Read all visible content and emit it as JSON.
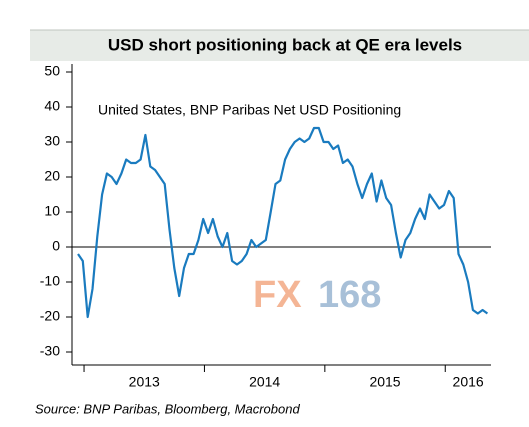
{
  "chart_data": {
    "type": "line",
    "title": "USD short positioning back at QE era levels",
    "annotation": "United States, BNP Paribas Net USD Positioning",
    "source": "Source:  BNP Paribas, Bloomberg, Macrobond",
    "watermark": [
      "FX",
      "168"
    ],
    "x": [
      2012.95,
      2012.99,
      2013.03,
      2013.07,
      2013.11,
      2013.15,
      2013.19,
      2013.23,
      2013.27,
      2013.31,
      2013.35,
      2013.39,
      2013.43,
      2013.47,
      2013.51,
      2013.55,
      2013.59,
      2013.63,
      2013.67,
      2013.71,
      2013.75,
      2013.79,
      2013.83,
      2013.87,
      2013.91,
      2013.95,
      2013.99,
      2014.03,
      2014.07,
      2014.11,
      2014.15,
      2014.19,
      2014.23,
      2014.27,
      2014.31,
      2014.35,
      2014.39,
      2014.43,
      2014.47,
      2014.51,
      2014.55,
      2014.59,
      2014.63,
      2014.67,
      2014.71,
      2014.75,
      2014.79,
      2014.83,
      2014.87,
      2014.91,
      2014.95,
      2014.99,
      2015.03,
      2015.07,
      2015.11,
      2015.15,
      2015.19,
      2015.23,
      2015.27,
      2015.31,
      2015.35,
      2015.39,
      2015.43,
      2015.47,
      2015.51,
      2015.55,
      2015.59,
      2015.63,
      2015.67,
      2015.71,
      2015.75,
      2015.79,
      2015.83,
      2015.87,
      2015.91,
      2015.95,
      2015.99,
      2016.03,
      2016.07,
      2016.11,
      2016.15,
      2016.19,
      2016.23,
      2016.27,
      2016.31,
      2016.35
    ],
    "series": [
      {
        "name": "Net USD Positioning",
        "color": "#1a7bbf",
        "values": [
          -2,
          -4,
          -20,
          -12,
          3,
          15,
          21,
          20,
          18,
          21,
          25,
          24,
          24,
          25,
          32,
          23,
          22,
          20,
          18,
          5,
          -6,
          -14,
          -6,
          -2,
          -2,
          2,
          8,
          4,
          8,
          3,
          0,
          4,
          -4,
          -5,
          -4,
          -2,
          2,
          0,
          1,
          2,
          10,
          18,
          19,
          25,
          28,
          30,
          31,
          30,
          31,
          34,
          34,
          30,
          30,
          28,
          29,
          24,
          25,
          23,
          18,
          14,
          18,
          21,
          13,
          19,
          14,
          12,
          4,
          -3,
          2,
          4,
          8,
          11,
          8,
          15,
          13,
          11,
          12,
          16,
          14,
          -2,
          -5,
          -10,
          -18,
          -19,
          -18,
          -19
        ]
      }
    ],
    "xlim": [
      2012.9,
      2016.38
    ],
    "xticks": [
      2013,
      2014,
      2015,
      2016
    ],
    "ylim": [
      -30,
      50
    ],
    "yticks": [
      -30,
      -20,
      -10,
      0,
      10,
      20,
      30,
      40,
      50
    ]
  }
}
